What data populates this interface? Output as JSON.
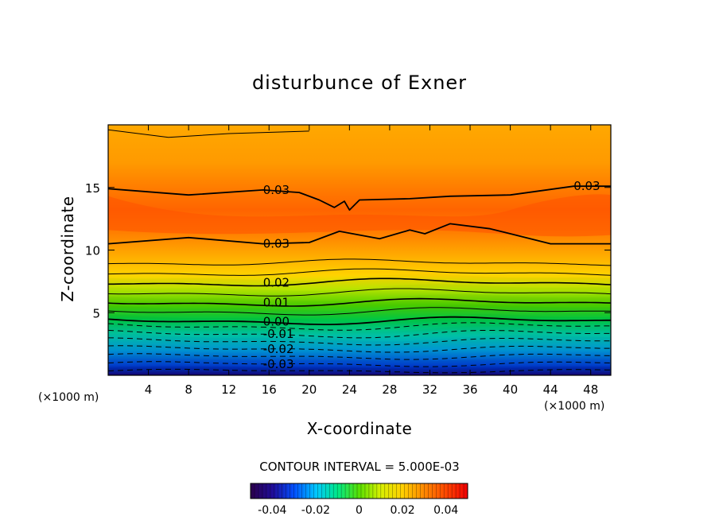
{
  "chart_data": {
    "type": "contour",
    "title": "disturbunce of Exner",
    "xlabel": "X-coordinate",
    "ylabel": "Z-coordinate",
    "x_unit": "(×1000 m)",
    "z_unit": "(×1000 m)",
    "xlim": [
      0,
      50
    ],
    "zlim": [
      0,
      20
    ],
    "x_ticks": [
      "4",
      "8",
      "12",
      "16",
      "20",
      "24",
      "28",
      "32",
      "36",
      "40",
      "44",
      "48"
    ],
    "z_ticks": [
      "5",
      "10",
      "15"
    ],
    "contour_interval_text": "CONTOUR INTERVAL = 5.000E-03",
    "contour_interval": 0.005,
    "contour_labels": [
      {
        "text": "0.03",
        "x": 15.4,
        "z": 14.8
      },
      {
        "text": "0.03",
        "x": 46.3,
        "z": 15.1
      },
      {
        "text": "0.03",
        "x": 15.4,
        "z": 10.5
      },
      {
        "text": "0.02",
        "x": 15.4,
        "z": 7.4
      },
      {
        "text": "0.01",
        "x": 15.4,
        "z": 5.8
      },
      {
        "text": "0.00",
        "x": 15.4,
        "z": 4.3
      },
      {
        "text": "-0.01",
        "x": 15.4,
        "z": 3.3
      },
      {
        "text": "-0.02",
        "x": 15.4,
        "z": 2.1
      },
      {
        "text": "-0.03",
        "x": 15.4,
        "z": 0.9
      }
    ],
    "grid": false,
    "legend": "colorbar bottom-center",
    "colorbar": {
      "range": [
        -0.05,
        0.05
      ],
      "ticks": [
        "-0.04",
        "-0.02",
        "0",
        "0.02",
        "0.04"
      ],
      "tick_values": [
        -0.04,
        -0.02,
        0,
        0.02,
        0.04
      ],
      "colormap": [
        "#2b004f",
        "#1f0d9a",
        "#0050ff",
        "#00c8ff",
        "#00e888",
        "#58e000",
        "#d8f000",
        "#ffd000",
        "#ff8a00",
        "#ff4a00",
        "#f00000"
      ]
    }
  }
}
